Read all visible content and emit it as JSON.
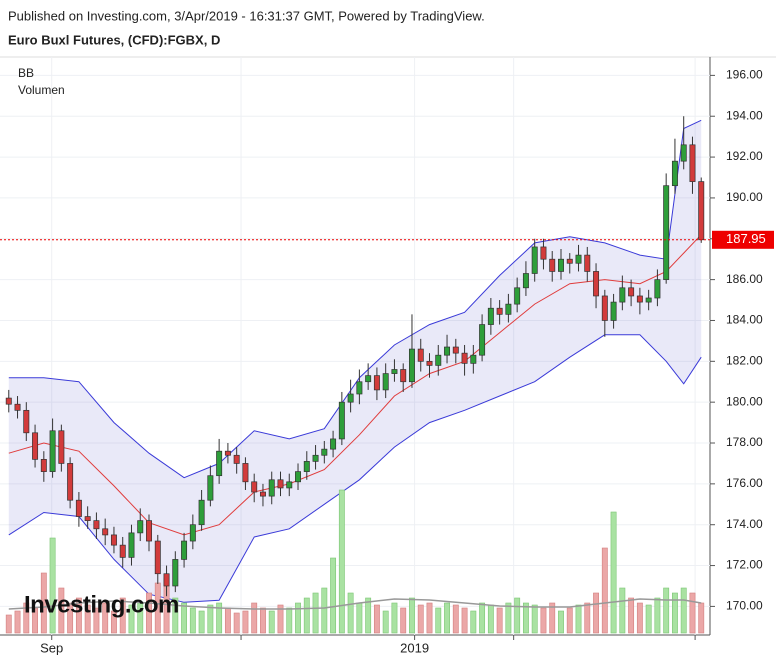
{
  "header": {
    "published": "Published on Investing.com, 3/Apr/2019 - 16:31:37 GMT, Powered by TradingView.",
    "instrument": "Euro Buxl Futures, (CFD):FGBX, D"
  },
  "chart_data": {
    "type": "candlestick",
    "legend": [
      "BB",
      "Volumen"
    ],
    "watermark": "Investing.com",
    "open": [
      180.2,
      179.9,
      179.6,
      178.5,
      177.2,
      176.6,
      178.6,
      177.0,
      175.2,
      174.4,
      174.2,
      173.8,
      173.5,
      173.0,
      172.4,
      173.6,
      174.2,
      173.2,
      171.6,
      171.0,
      172.3,
      173.2,
      174.0,
      175.2,
      176.4,
      177.6,
      177.4,
      177.0,
      176.1,
      175.6,
      175.4,
      176.2,
      175.8,
      176.1,
      176.6,
      177.1,
      177.4,
      177.7,
      178.2,
      180.0,
      180.4,
      181.0,
      181.3,
      180.6,
      181.4,
      181.6,
      181.0,
      182.6,
      182.0,
      181.8,
      182.3,
      182.7,
      182.4,
      181.9,
      182.3,
      183.8,
      184.6,
      184.3,
      184.8,
      185.6,
      186.3,
      187.6,
      187.0,
      186.4,
      187.0,
      186.8,
      187.2,
      186.4,
      185.2,
      184.0,
      184.9,
      185.6,
      185.2,
      184.9,
      185.1,
      186.0,
      190.6,
      191.8,
      192.6,
      190.8
    ],
    "high": [
      180.6,
      180.3,
      180.0,
      178.9,
      177.6,
      179.2,
      178.9,
      177.3,
      175.6,
      174.9,
      174.6,
      174.3,
      173.9,
      173.4,
      174.0,
      174.8,
      174.5,
      173.5,
      172.0,
      172.7,
      173.6,
      174.5,
      175.7,
      176.9,
      178.2,
      178.0,
      177.8,
      177.3,
      176.5,
      176.0,
      176.6,
      176.6,
      176.5,
      177.0,
      177.6,
      177.9,
      178.1,
      178.6,
      180.5,
      181.1,
      181.6,
      181.9,
      181.7,
      181.9,
      182.1,
      181.9,
      184.3,
      183.1,
      182.4,
      182.8,
      183.3,
      183.1,
      182.8,
      182.8,
      184.3,
      185.1,
      185.0,
      185.3,
      186.1,
      186.9,
      188.0,
      188.0,
      187.4,
      187.5,
      187.3,
      187.7,
      187.6,
      186.8,
      185.5,
      185.3,
      186.2,
      186.0,
      185.6,
      185.5,
      186.5,
      191.2,
      192.9,
      194.0,
      193.0,
      191.0
    ],
    "low": [
      179.5,
      179.2,
      178.1,
      176.8,
      176.1,
      176.3,
      176.6,
      174.8,
      173.9,
      173.8,
      173.3,
      173.0,
      172.6,
      171.9,
      172.0,
      173.2,
      172.7,
      171.1,
      170.5,
      170.7,
      171.9,
      172.8,
      173.7,
      174.9,
      176.0,
      177.0,
      176.5,
      175.7,
      175.1,
      174.9,
      175.0,
      175.4,
      175.4,
      175.7,
      176.2,
      176.7,
      177.0,
      177.3,
      177.9,
      179.5,
      179.9,
      180.6,
      180.1,
      180.2,
      181.0,
      180.5,
      180.7,
      181.5,
      181.2,
      181.3,
      181.9,
      181.9,
      181.3,
      181.4,
      182.0,
      183.3,
      183.8,
      183.9,
      184.4,
      185.2,
      185.9,
      186.5,
      185.9,
      186.0,
      186.3,
      186.4,
      185.9,
      184.6,
      183.2,
      183.6,
      184.5,
      184.7,
      184.3,
      184.5,
      184.7,
      185.8,
      190.2,
      191.4,
      190.2,
      187.8
    ],
    "close": [
      179.9,
      179.6,
      178.5,
      177.2,
      176.6,
      178.6,
      177.0,
      175.2,
      174.4,
      174.2,
      173.8,
      173.5,
      173.0,
      172.4,
      173.6,
      174.2,
      173.2,
      171.6,
      171.0,
      172.3,
      173.2,
      174.0,
      175.2,
      176.4,
      177.6,
      177.4,
      177.0,
      176.1,
      175.6,
      175.4,
      176.2,
      175.8,
      176.1,
      176.6,
      177.1,
      177.4,
      177.7,
      178.2,
      180.0,
      180.4,
      181.0,
      181.3,
      180.6,
      181.4,
      181.6,
      181.0,
      182.6,
      182.0,
      181.8,
      182.3,
      182.7,
      182.4,
      181.9,
      182.3,
      183.8,
      184.6,
      184.3,
      184.8,
      185.6,
      186.3,
      187.6,
      187.0,
      186.4,
      187.0,
      186.8,
      187.2,
      186.4,
      185.2,
      184.0,
      184.9,
      185.6,
      185.2,
      184.9,
      185.1,
      186.0,
      190.6,
      191.8,
      192.6,
      190.8,
      187.95
    ],
    "volume": [
      18,
      22,
      30,
      25,
      60,
      95,
      45,
      30,
      35,
      28,
      25,
      30,
      22,
      35,
      28,
      30,
      40,
      50,
      55,
      35,
      30,
      25,
      22,
      28,
      30,
      25,
      20,
      22,
      30,
      25,
      22,
      28,
      25,
      30,
      35,
      40,
      45,
      75,
      143,
      40,
      30,
      35,
      28,
      22,
      30,
      25,
      35,
      28,
      30,
      25,
      30,
      28,
      25,
      22,
      30,
      28,
      25,
      30,
      35,
      30,
      28,
      25,
      30,
      22,
      25,
      28,
      30,
      40,
      85,
      121,
      45,
      35,
      30,
      28,
      35,
      45,
      40,
      45,
      40,
      30
    ],
    "bb": {
      "x": [
        0,
        4,
        8,
        12,
        16,
        20,
        24,
        28,
        32,
        36,
        40,
        44,
        48,
        52,
        56,
        60,
        64,
        68,
        72,
        75,
        77,
        79
      ],
      "upper": [
        181.2,
        181.2,
        181.0,
        179.0,
        177.5,
        176.3,
        177.0,
        178.6,
        178.2,
        178.7,
        181.2,
        182.8,
        183.8,
        184.4,
        186.2,
        187.8,
        188.1,
        187.8,
        187.2,
        187.0,
        193.4,
        193.8
      ],
      "middle": [
        177.5,
        178.0,
        177.6,
        175.9,
        174.1,
        173.5,
        174.0,
        175.6,
        176.0,
        176.7,
        178.4,
        180.3,
        181.4,
        182.0,
        183.4,
        184.8,
        185.8,
        186.0,
        185.8,
        186.4,
        187.3,
        188.2
      ],
      "lower": [
        173.5,
        174.6,
        174.4,
        172.3,
        170.6,
        170.2,
        170.3,
        173.4,
        173.8,
        175.0,
        176.2,
        177.8,
        179.0,
        179.6,
        180.3,
        181.0,
        182.2,
        183.3,
        183.3,
        182.0,
        180.9,
        182.2
      ]
    },
    "volume_ma": [
      24,
      26,
      30,
      32,
      30,
      27,
      25,
      24,
      24,
      25,
      30,
      34,
      33,
      30,
      27,
      26,
      26,
      30,
      34,
      33,
      33,
      30
    ],
    "vlim": [
      0,
      150
    ],
    "last_price": 187.95,
    "up_color": "#2e9e3a",
    "down_color": "#d23b3b",
    "band_color": "#3a3ad8",
    "mid_color": "#e03c3c",
    "xlim": [
      -1,
      80
    ],
    "xticks": [
      4.9,
      26.5,
      46.3,
      57.6,
      78.3
    ],
    "xtick_labels": [
      "Sep",
      null,
      "2019",
      null,
      null
    ],
    "ylim": [
      168.6,
      196.9
    ],
    "yticks": [
      {
        "value": 170,
        "label": "170.00"
      },
      {
        "value": 172,
        "label": "172.00"
      },
      {
        "value": 174,
        "label": "174.00"
      },
      {
        "value": 176,
        "label": "176.00"
      },
      {
        "value": 178,
        "label": "178.00"
      },
      {
        "value": 180,
        "label": "180.00"
      },
      {
        "value": 182,
        "label": "182.00"
      },
      {
        "value": 184,
        "label": "184.00"
      },
      {
        "value": 186,
        "label": "186.00"
      },
      {
        "value": 188,
        "label": "188.00"
      },
      {
        "value": 190,
        "label": "190.00"
      },
      {
        "value": 192,
        "label": "192.00"
      },
      {
        "value": 194,
        "label": "194.00"
      },
      {
        "value": 196,
        "label": "196.00"
      }
    ],
    "grid": true
  }
}
